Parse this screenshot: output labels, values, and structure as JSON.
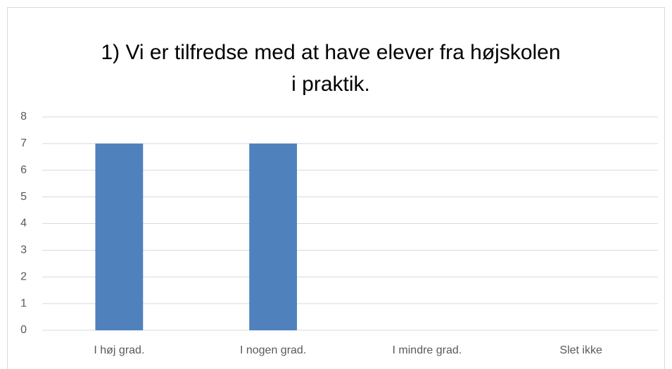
{
  "chart_data": {
    "type": "bar",
    "title": [
      "1) Vi er tilfredse med at have elever fra højskolen",
      "i praktik."
    ],
    "categories": [
      "I høj grad.",
      "I nogen grad.",
      "I mindre grad.",
      "Slet ikke"
    ],
    "values": [
      7,
      7,
      0,
      0
    ],
    "color": "#4f81bd",
    "ylim": [
      0,
      8
    ],
    "yticks": [
      0,
      1,
      2,
      3,
      4,
      5,
      6,
      7,
      8
    ],
    "grid": true
  }
}
